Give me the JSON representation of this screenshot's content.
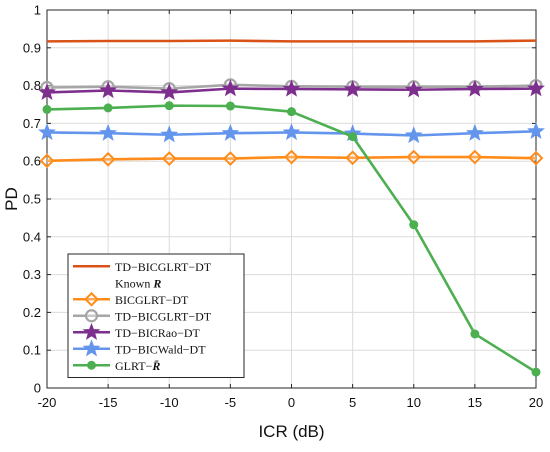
{
  "chart_data": {
    "type": "line",
    "xlabel": "ICR (dB)",
    "ylabel": "PD",
    "x": [
      -20,
      -15,
      -10,
      -5,
      0,
      5,
      10,
      15,
      20
    ],
    "xlim": [
      -20,
      20
    ],
    "ylim": [
      0,
      1
    ],
    "xticks": [
      "-20",
      "-15",
      "-10",
      "-5",
      "0",
      "5",
      "10",
      "15",
      "20"
    ],
    "yticks": [
      "0",
      "0.1",
      "0.2",
      "0.3",
      "0.4",
      "0.5",
      "0.6",
      "0.7",
      "0.8",
      "0.9",
      "1"
    ],
    "grid": true,
    "legend_position": "bottom-left",
    "series": [
      {
        "name_lines": [
          "TD−BICGLRT−DT",
          "Known R"
        ],
        "color": "#D95319",
        "marker": "none",
        "values": [
          0.917,
          0.918,
          0.918,
          0.919,
          0.917,
          0.917,
          0.917,
          0.917,
          0.919
        ]
      },
      {
        "name_lines": [
          "BICGLRT−DT"
        ],
        "color": "#FF8C1A",
        "marker": "diamond",
        "values": [
          0.601,
          0.605,
          0.607,
          0.607,
          0.611,
          0.609,
          0.611,
          0.611,
          0.608
        ]
      },
      {
        "name_lines": [
          "TD−BICGLRT−DT"
        ],
        "color": "#A6A6A6",
        "marker": "circle-open",
        "values": [
          0.795,
          0.797,
          0.792,
          0.802,
          0.798,
          0.797,
          0.797,
          0.797,
          0.8
        ]
      },
      {
        "name_lines": [
          "TD−BICRao−DT"
        ],
        "color": "#7E2F8E",
        "marker": "star",
        "values": [
          0.782,
          0.787,
          0.782,
          0.792,
          0.791,
          0.79,
          0.789,
          0.791,
          0.792
        ]
      },
      {
        "name_lines": [
          "TD−BICWald−DT"
        ],
        "color": "#6495ED",
        "marker": "star",
        "values": [
          0.676,
          0.674,
          0.67,
          0.674,
          0.676,
          0.673,
          0.668,
          0.674,
          0.679
        ]
      },
      {
        "name_lines": [
          "GLRT−R̄"
        ],
        "color": "#4CAF50",
        "marker": "dot",
        "values": [
          0.737,
          0.741,
          0.747,
          0.746,
          0.731,
          0.665,
          0.432,
          0.143,
          0.042
        ]
      }
    ]
  }
}
